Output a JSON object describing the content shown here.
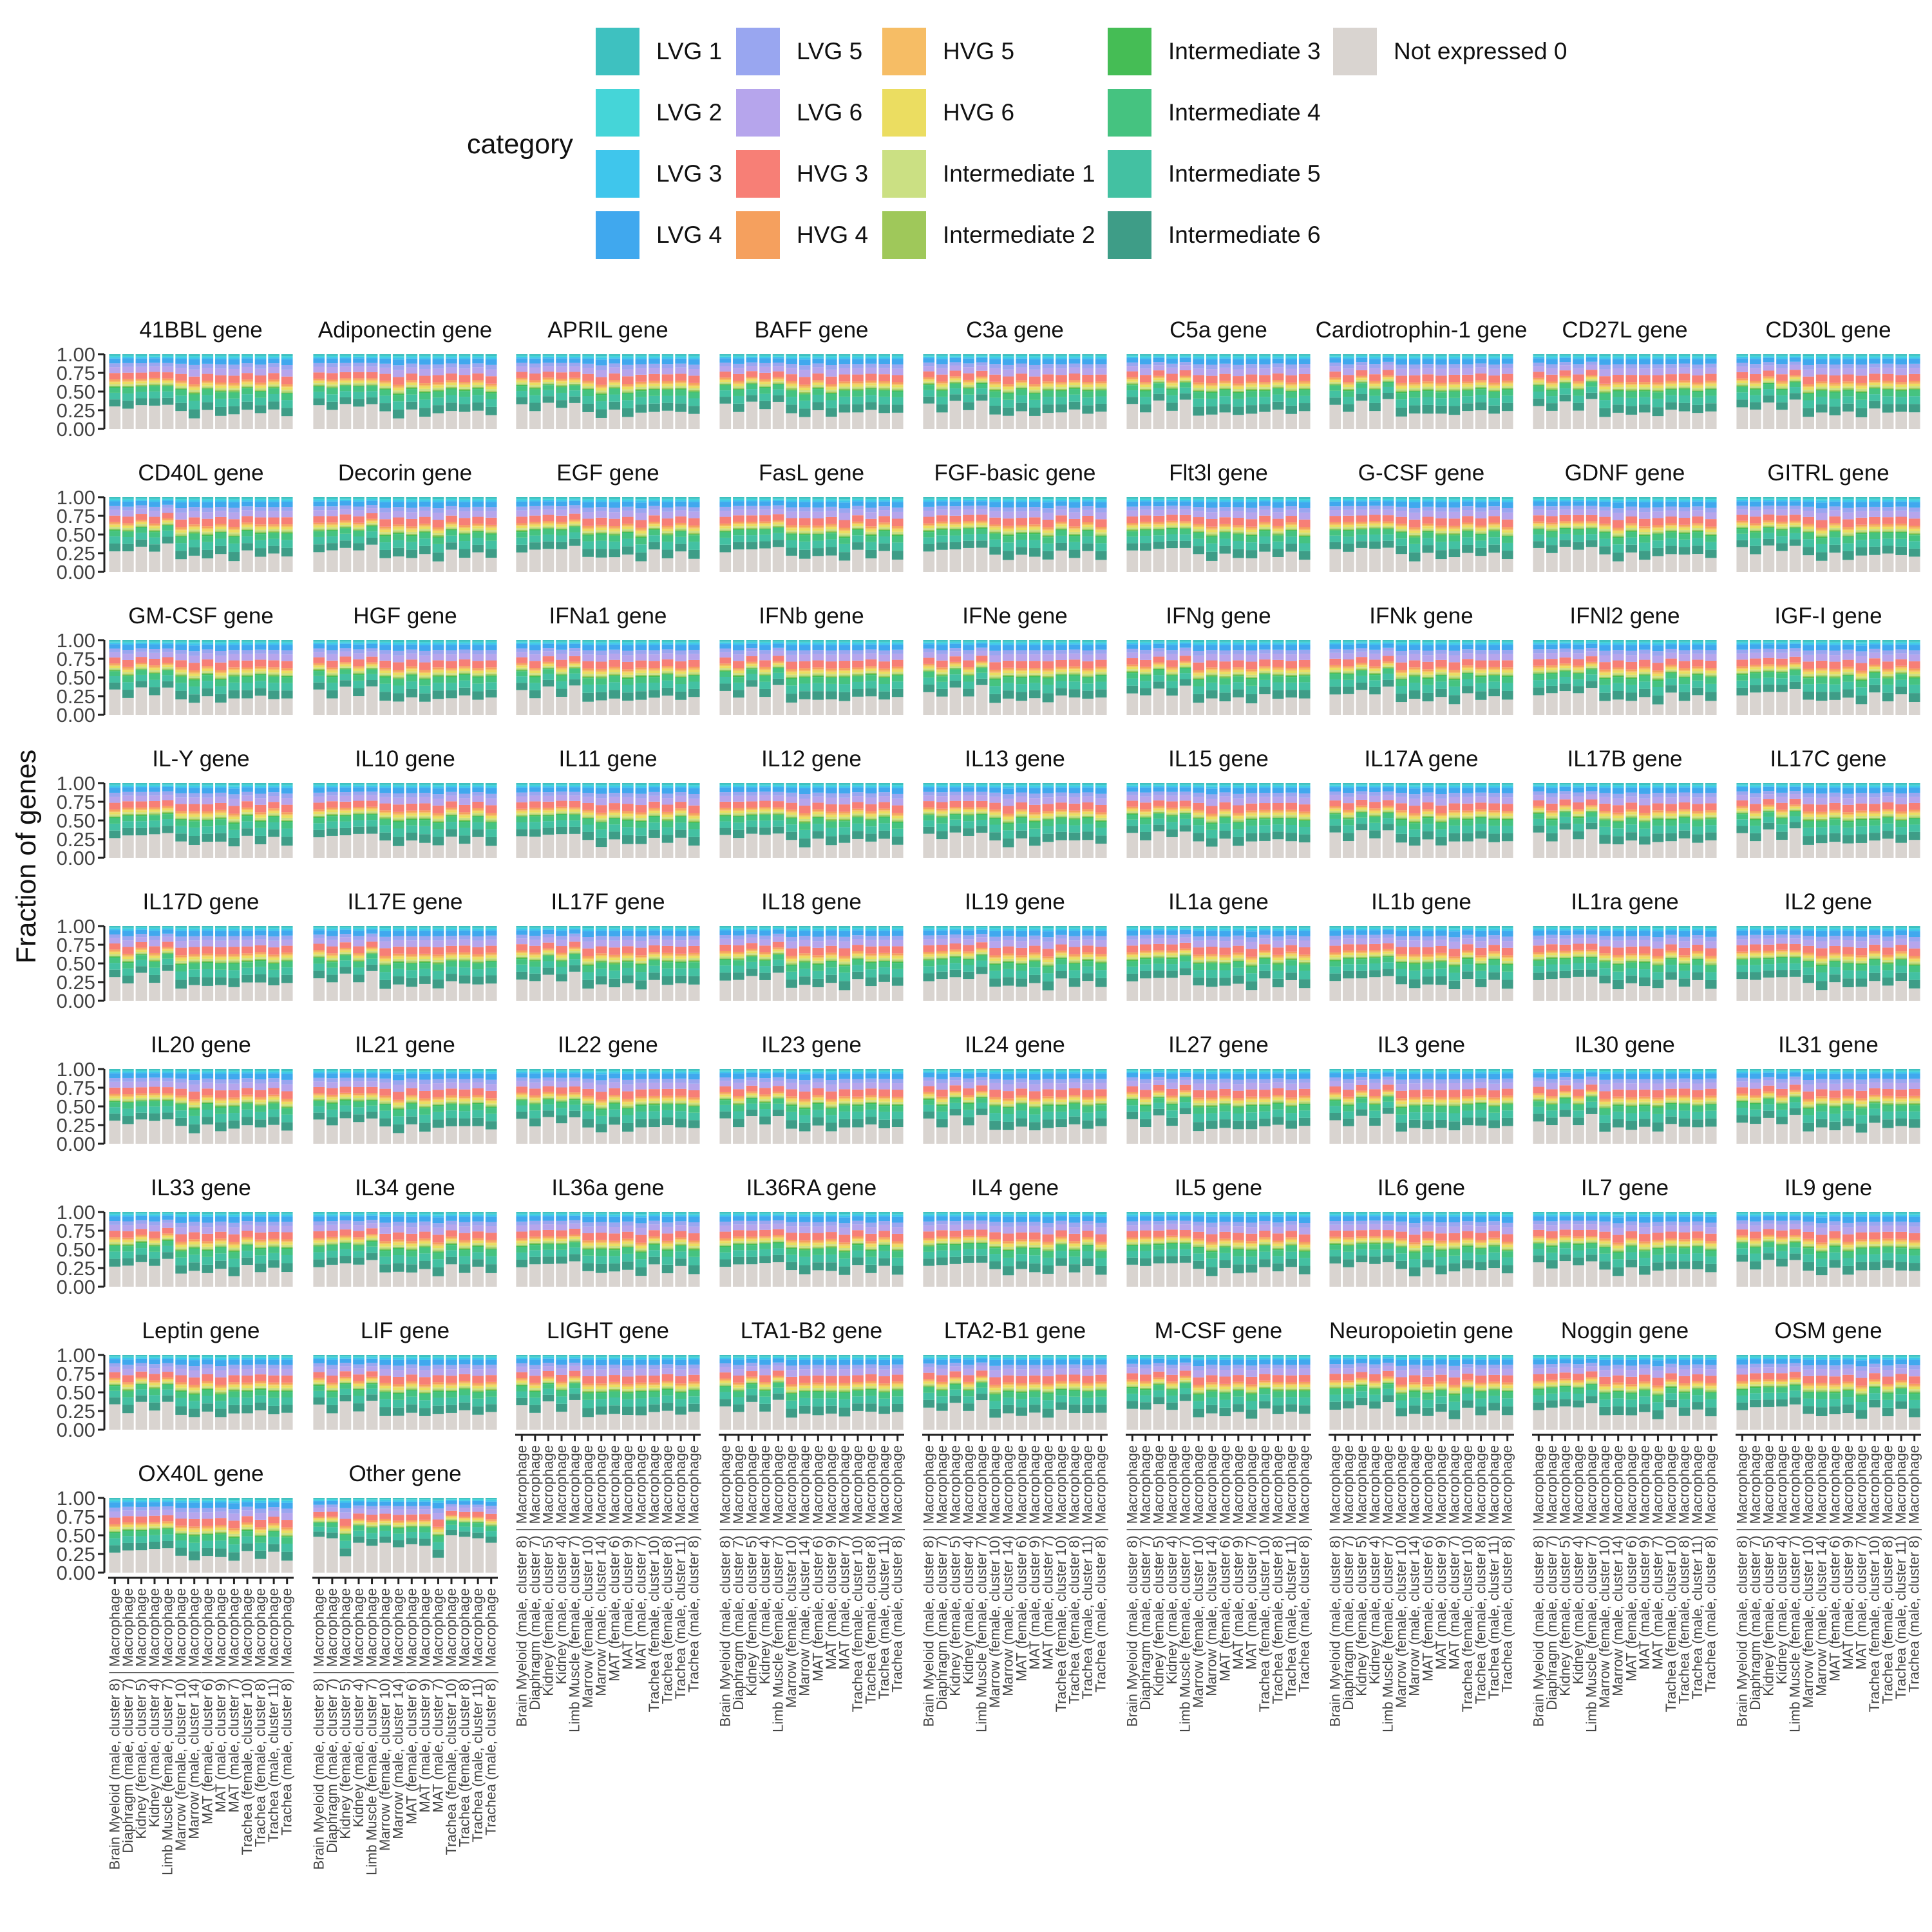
{
  "legend": {
    "title": "category",
    "items": [
      {
        "label": "LVG 1",
        "color": "#3ec1c0"
      },
      {
        "label": "LVG 2",
        "color": "#45d5d8"
      },
      {
        "label": "LVG 3",
        "color": "#3fc6ec"
      },
      {
        "label": "LVG 4",
        "color": "#40a8ee"
      },
      {
        "label": "LVG 5",
        "color": "#99a6f0"
      },
      {
        "label": "LVG 6",
        "color": "#b6a5ec"
      },
      {
        "label": "HVG 3",
        "color": "#f77f76"
      },
      {
        "label": "HVG 4",
        "color": "#f5a05e"
      },
      {
        "label": "HVG 5",
        "color": "#f6bd65"
      },
      {
        "label": "HVG 6",
        "color": "#ebdd61"
      },
      {
        "label": "Intermediate 1",
        "color": "#cbe083"
      },
      {
        "label": "Intermediate 2",
        "color": "#9fc85a"
      },
      {
        "label": "Intermediate 3",
        "color": "#45bd55"
      },
      {
        "label": "Intermediate 4",
        "color": "#45c380"
      },
      {
        "label": "Intermediate 5",
        "color": "#43c1a2"
      },
      {
        "label": "Intermediate 6",
        "color": "#3e9d87"
      },
      {
        "label": "Not expressed 0",
        "color": "#d9d4d0"
      }
    ]
  },
  "chart_data": {
    "type": "bar",
    "stacked": true,
    "ylabel": "Fraction of genes",
    "xlabel": "",
    "ylim": [
      0,
      1
    ],
    "yticks": [
      "0.00",
      "0.25",
      "0.50",
      "0.75",
      "1.00"
    ],
    "categories": [
      "Brain Myeloid (male, cluster 8) | Macrophage",
      "Diaphragm (male, cluster 7) | Macrophage",
      "Kidney (female, cluster 5) | Macrophage",
      "Kidney (male, cluster 4) | Macrophage",
      "Limb Muscle (female, cluster 7) | Macrophage",
      "Marrow (female, cluster 10) | Macrophage",
      "Marrow (male, cluster 14) | Macrophage",
      "MAT (female, cluster 6) | Macrophage",
      "MAT (male, cluster 9) | Macrophage",
      "MAT (male, cluster 7) | Macrophage",
      "Trachea (female, cluster 10) | Macrophage",
      "Trachea (female, cluster 8) | Macrophage",
      "Trachea (male, cluster 11) | Macrophage",
      "Trachea (male, cluster 8) | Macrophage"
    ],
    "panels": [
      "41BBL gene",
      "Adiponectin gene",
      "APRIL gene",
      "BAFF gene",
      "C3a gene",
      "C5a gene",
      "Cardiotrophin-1 gene",
      "CD27L gene",
      "CD30L gene",
      "CD40L gene",
      "Decorin gene",
      "EGF gene",
      "FasL gene",
      "FGF-basic gene",
      "Flt3l gene",
      "G-CSF gene",
      "GDNF gene",
      "GITRL gene",
      "GM-CSF gene",
      "HGF gene",
      "IFNa1 gene",
      "IFNb gene",
      "IFNe gene",
      "IFNg gene",
      "IFNk gene",
      "IFNl2 gene",
      "IGF-I gene",
      "IL-Y gene",
      "IL10 gene",
      "IL11 gene",
      "IL12 gene",
      "IL13 gene",
      "IL15 gene",
      "IL17A gene",
      "IL17B gene",
      "IL17C gene",
      "IL17D gene",
      "IL17E gene",
      "IL17F gene",
      "IL18 gene",
      "IL19 gene",
      "IL1a gene",
      "IL1b gene",
      "IL1ra gene",
      "IL2 gene",
      "IL20 gene",
      "IL21 gene",
      "IL22 gene",
      "IL23 gene",
      "IL24 gene",
      "IL27 gene",
      "IL3 gene",
      "IL30 gene",
      "IL31 gene",
      "IL33 gene",
      "IL34 gene",
      "IL36a gene",
      "IL36RA gene",
      "IL4 gene",
      "IL5 gene",
      "IL6 gene",
      "IL7 gene",
      "IL9 gene",
      "Leptin gene",
      "LIF gene",
      "LIGHT gene",
      "LTA1-B2 gene",
      "LTA2-B1 gene",
      "M-CSF gene",
      "Neuropoietin gene",
      "Noggin gene",
      "OSM gene",
      "OX40L gene",
      "Other gene"
    ],
    "typical_profile": {
      "stack_order_bottom_to_top": [
        "Not expressed 0",
        "Intermediate 6",
        "Intermediate 5",
        "Intermediate 4",
        "Intermediate 3",
        "Intermediate 2",
        "Intermediate 1",
        "HVG 6",
        "HVG 5",
        "HVG 4",
        "HVG 3",
        "LVG 6",
        "LVG 5",
        "LVG 4",
        "LVG 3",
        "LVG 2",
        "LVG 1"
      ],
      "not_expressed_by_category": [
        0.3,
        0.26,
        0.34,
        0.28,
        0.36,
        0.2,
        0.18,
        0.22,
        0.2,
        0.18,
        0.26,
        0.22,
        0.24,
        0.2
      ],
      "other_segments_fraction_of_remainder": [
        0.14,
        0.13,
        0.1,
        0.02,
        0.02,
        0.03,
        0.04,
        0.02,
        0.03,
        0.12,
        0.11,
        0.07,
        0.09,
        0.03,
        0.02,
        0.03
      ]
    },
    "other_gene_not_expressed": [
      0.48,
      0.46,
      0.22,
      0.4,
      0.36,
      0.4,
      0.34,
      0.38,
      0.36,
      0.2,
      0.5,
      0.48,
      0.46,
      0.4
    ]
  }
}
